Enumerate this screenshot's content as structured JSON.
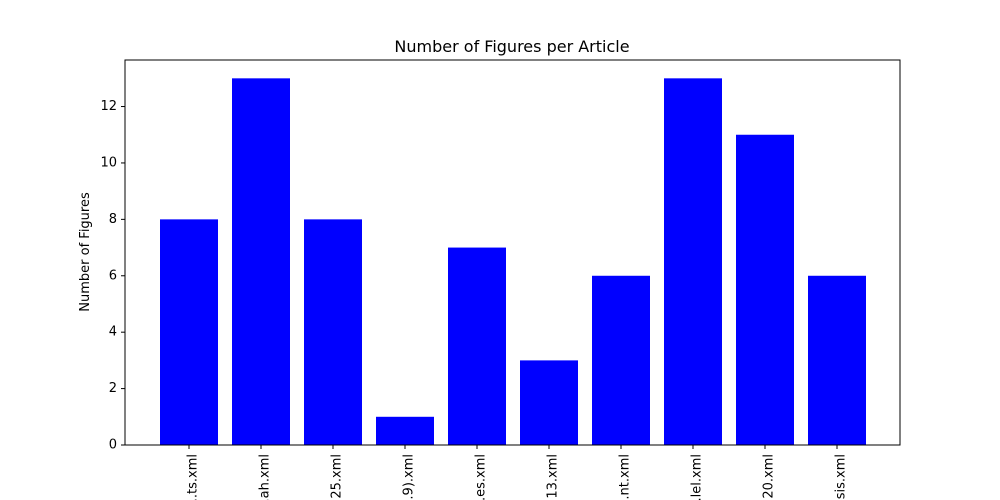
{
  "chart_data": {
    "type": "bar",
    "title": "Number of Figures per Article",
    "xlabel": "",
    "ylabel": "Number of Figures",
    "categories": [
      "...ts.xml",
      "...ah.xml",
      "...25.xml",
      "...9).xml",
      "...es.xml",
      "...13.xml",
      "...nt.xml",
      "...lel.xml",
      "...20.xml",
      "...sis.xml"
    ],
    "values": [
      8,
      13,
      8,
      1,
      7,
      3,
      6,
      13,
      11,
      6
    ],
    "ylim": [
      0,
      13.65
    ],
    "yticks": [
      0,
      2,
      4,
      6,
      8,
      10,
      12
    ],
    "bar_color": "#0000ff",
    "grid": false,
    "legend": "none"
  }
}
